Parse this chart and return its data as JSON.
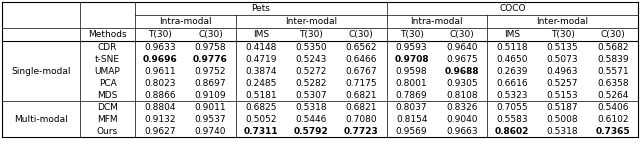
{
  "title_pets": "Pets",
  "title_coco": "COCO",
  "methods": [
    "CDR",
    "t-SNE",
    "UMAP",
    "PCA",
    "MDS",
    "DCM",
    "MFM",
    "Ours"
  ],
  "data": {
    "CDR": [
      "0.9633",
      "0.9758",
      "0.4148",
      "0.5350",
      "0.6562",
      "0.9593",
      "0.9640",
      "0.5118",
      "0.5135",
      "0.5682"
    ],
    "t-SNE": [
      "0.9696",
      "0.9776",
      "0.4719",
      "0.5243",
      "0.6466",
      "0.9708",
      "0.9675",
      "0.4650",
      "0.5073",
      "0.5839"
    ],
    "UMAP": [
      "0.9611",
      "0.9752",
      "0.3874",
      "0.5272",
      "0.6767",
      "0.9598",
      "0.9688",
      "0.2639",
      "0.4963",
      "0.5571"
    ],
    "PCA": [
      "0.8023",
      "0.8697",
      "0.2485",
      "0.5282",
      "0.7175",
      "0.8001",
      "0.9305",
      "0.6616",
      "0.5257",
      "0.6358"
    ],
    "MDS": [
      "0.8866",
      "0.9109",
      "0.5181",
      "0.5307",
      "0.6821",
      "0.7869",
      "0.8108",
      "0.5323",
      "0.5153",
      "0.5264"
    ],
    "DCM": [
      "0.8804",
      "0.9011",
      "0.6825",
      "0.5318",
      "0.6821",
      "0.8037",
      "0.8326",
      "0.7055",
      "0.5187",
      "0.5406"
    ],
    "MFM": [
      "0.9132",
      "0.9537",
      "0.5052",
      "0.5446",
      "0.7080",
      "0.8154",
      "0.9040",
      "0.5583",
      "0.5008",
      "0.6102"
    ],
    "Ours": [
      "0.9627",
      "0.9740",
      "0.7311",
      "0.5792",
      "0.7723",
      "0.9569",
      "0.9663",
      "0.8602",
      "0.5318",
      "0.7365"
    ]
  },
  "bold": {
    "CDR": [
      false,
      false,
      false,
      false,
      false,
      false,
      false,
      false,
      false,
      false
    ],
    "t-SNE": [
      true,
      true,
      false,
      false,
      false,
      true,
      false,
      false,
      false,
      false
    ],
    "UMAP": [
      false,
      false,
      false,
      false,
      false,
      false,
      true,
      false,
      false,
      false
    ],
    "PCA": [
      false,
      false,
      false,
      false,
      false,
      false,
      false,
      false,
      false,
      false
    ],
    "MDS": [
      false,
      false,
      false,
      false,
      false,
      false,
      false,
      false,
      false,
      false
    ],
    "DCM": [
      false,
      false,
      false,
      false,
      false,
      false,
      false,
      false,
      false,
      false
    ],
    "MFM": [
      false,
      false,
      false,
      false,
      false,
      false,
      false,
      false,
      false,
      false
    ],
    "Ours": [
      false,
      false,
      true,
      true,
      true,
      false,
      false,
      true,
      false,
      true
    ]
  },
  "bg_color": "#ffffff",
  "line_color": "#000000",
  "font_size": 6.5,
  "header_font_size": 6.5,
  "group_label_fontsize": 6.5
}
